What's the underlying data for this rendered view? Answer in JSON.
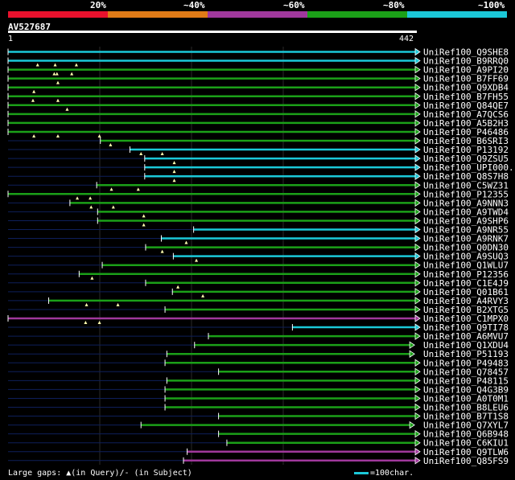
{
  "legend": {
    "colors": [
      "#e8112d",
      "#e07b17",
      "#a0389c",
      "#1ba018",
      "#1bc8d8"
    ],
    "labels": [
      "20%",
      "~40%",
      "~60%",
      "~80%",
      "~100%"
    ]
  },
  "query": {
    "id": "AV527687",
    "start": "1",
    "end": "442",
    "length": 442
  },
  "hits": [
    {
      "name": "UniRef100_Q9SHE8",
      "start": 1,
      "end": 442,
      "color": "cyan",
      "gaps": []
    },
    {
      "name": "UniRef100_B9RRQ0",
      "start": 1,
      "end": 442,
      "color": "cyan",
      "gaps": [
        33,
        52,
        75
      ]
    },
    {
      "name": "UniRef100_A9PI20",
      "start": 1,
      "end": 442,
      "color": "green",
      "gaps": [
        51,
        54,
        70
      ]
    },
    {
      "name": "UniRef100_B7FF69",
      "start": 1,
      "end": 442,
      "color": "green",
      "gaps": [
        55
      ]
    },
    {
      "name": "UniRef100_Q9XDB4",
      "start": 1,
      "end": 442,
      "color": "green",
      "gaps": [
        29
      ]
    },
    {
      "name": "UniRef100_B7FH55",
      "start": 1,
      "end": 442,
      "color": "green",
      "gaps": [
        28,
        55
      ]
    },
    {
      "name": "UniRef100_Q84QE7",
      "start": 1,
      "end": 442,
      "color": "green",
      "gaps": [
        65
      ]
    },
    {
      "name": "UniRef100_A7QCS6",
      "start": 1,
      "end": 442,
      "color": "green",
      "gaps": []
    },
    {
      "name": "UniRef100_A5B2H3",
      "start": 1,
      "end": 442,
      "color": "green",
      "gaps": []
    },
    {
      "name": "UniRef100_P46486",
      "start": 1,
      "end": 442,
      "color": "green",
      "gaps": [
        29,
        55,
        100
      ]
    },
    {
      "name": "UniRef100_B6SRI3",
      "start": 101,
      "end": 442,
      "color": "green",
      "gaps": [
        112
      ]
    },
    {
      "name": "UniRef100_P13192",
      "start": 133,
      "end": 442,
      "color": "cyan",
      "gaps": [
        145,
        168
      ]
    },
    {
      "name": "UniRef100_Q9ZSU5",
      "start": 149,
      "end": 442,
      "color": "cyan",
      "gaps": [
        181
      ]
    },
    {
      "name": "UniRef100_UPI000...",
      "start": 149,
      "end": 442,
      "color": "cyan",
      "gaps": [
        181
      ]
    },
    {
      "name": "UniRef100_Q8S7H8",
      "start": 149,
      "end": 442,
      "color": "cyan",
      "gaps": [
        181
      ]
    },
    {
      "name": "UniRef100_C5WZ31",
      "start": 97,
      "end": 442,
      "color": "green",
      "gaps": [
        113,
        142
      ]
    },
    {
      "name": "UniRef100_P12355",
      "start": 1,
      "end": 442,
      "color": "green",
      "gaps": [
        76,
        90
      ]
    },
    {
      "name": "UniRef100_A9NNN3",
      "start": 68,
      "end": 442,
      "color": "green",
      "gaps": [
        91,
        115
      ]
    },
    {
      "name": "UniRef100_A9TWD4",
      "start": 98,
      "end": 442,
      "color": "green",
      "gaps": [
        148
      ]
    },
    {
      "name": "UniRef100_A9SHP6",
      "start": 98,
      "end": 442,
      "color": "green",
      "gaps": [
        148
      ]
    },
    {
      "name": "UniRef100_A9NR55",
      "start": 202,
      "end": 442,
      "color": "cyan",
      "gaps": []
    },
    {
      "name": "UniRef100_A9RNK7",
      "start": 167,
      "end": 442,
      "color": "cyan",
      "gaps": [
        194
      ]
    },
    {
      "name": "UniRef100_Q0DN30",
      "start": 150,
      "end": 442,
      "color": "green",
      "gaps": [
        168
      ]
    },
    {
      "name": "UniRef100_A9SUQ3",
      "start": 180,
      "end": 442,
      "color": "cyan",
      "gaps": [
        205
      ]
    },
    {
      "name": "UniRef100_Q1WLU7",
      "start": 103,
      "end": 442,
      "color": "green",
      "gaps": []
    },
    {
      "name": "UniRef100_P12356",
      "start": 78,
      "end": 442,
      "color": "green",
      "gaps": [
        92
      ]
    },
    {
      "name": "UniRef100_C1E4J9",
      "start": 150,
      "end": 442,
      "color": "green",
      "gaps": [
        185
      ]
    },
    {
      "name": "UniRef100_Q01B61",
      "start": 179,
      "end": 442,
      "color": "green",
      "gaps": [
        212
      ]
    },
    {
      "name": "UniRef100_A4RVY3",
      "start": 45,
      "end": 442,
      "color": "green",
      "gaps": [
        86,
        120
      ]
    },
    {
      "name": "UniRef100_B2XTG5",
      "start": 171,
      "end": 442,
      "color": "green",
      "gaps": []
    },
    {
      "name": "UniRef100_C1MPX0",
      "start": 1,
      "end": 442,
      "color": "purple",
      "gaps": [
        85,
        100
      ]
    },
    {
      "name": "UniRef100_Q9TI78",
      "start": 309,
      "end": 442,
      "color": "cyan",
      "gaps": []
    },
    {
      "name": "UniRef100_A6MVU7",
      "start": 218,
      "end": 442,
      "color": "green",
      "gaps": []
    },
    {
      "name": "UniRef100_Q1XDU4",
      "start": 203,
      "end": 436,
      "color": "green",
      "gaps": []
    },
    {
      "name": "UniRef100_P51193",
      "start": 173,
      "end": 436,
      "color": "green",
      "gaps": []
    },
    {
      "name": "UniRef100_P49483",
      "start": 171,
      "end": 442,
      "color": "green",
      "gaps": []
    },
    {
      "name": "UniRef100_Q78457",
      "start": 229,
      "end": 442,
      "color": "green",
      "gaps": []
    },
    {
      "name": "UniRef100_P48115",
      "start": 173,
      "end": 442,
      "color": "green",
      "gaps": []
    },
    {
      "name": "UniRef100_Q4G3B9",
      "start": 171,
      "end": 442,
      "color": "green",
      "gaps": []
    },
    {
      "name": "UniRef100_A0T0M1",
      "start": 171,
      "end": 442,
      "color": "green",
      "gaps": []
    },
    {
      "name": "UniRef100_B8LEU6",
      "start": 171,
      "end": 442,
      "color": "green",
      "gaps": []
    },
    {
      "name": "UniRef100_B7T1S8",
      "start": 229,
      "end": 442,
      "color": "green",
      "gaps": []
    },
    {
      "name": "UniRef100_Q7XYL7",
      "start": 145,
      "end": 436,
      "color": "green",
      "gaps": []
    },
    {
      "name": "UniRef100_Q6B948",
      "start": 229,
      "end": 442,
      "color": "green",
      "gaps": []
    },
    {
      "name": "UniRef100_C6KIU1",
      "start": 238,
      "end": 442,
      "color": "green",
      "gaps": []
    },
    {
      "name": "UniRef100_Q9TLW6",
      "start": 195,
      "end": 442,
      "color": "purple",
      "gaps": []
    },
    {
      "name": "UniRef100_Q85FS9",
      "start": 191,
      "end": 442,
      "color": "purple",
      "gaps": []
    }
  ],
  "footer": {
    "text": "Large gaps: ▲(in Query)/- (in Subject)",
    "scale": "=100char."
  }
}
